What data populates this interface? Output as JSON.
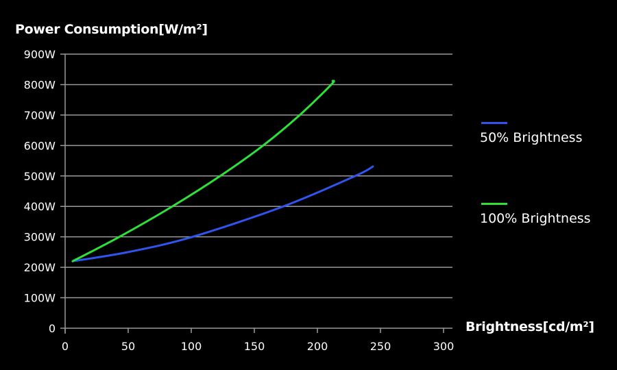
{
  "chart_data": {
    "type": "line",
    "ylabel": "Power Consumption[W/m²]",
    "xlabel": "Brightness[cd/m²]",
    "xlim": [
      0,
      300
    ],
    "ylim": [
      0,
      900
    ],
    "xticks": [
      "0",
      "50",
      "100",
      "150",
      "200",
      "250",
      "300"
    ],
    "yticks": [
      "0",
      "100W",
      "200W",
      "300W",
      "400W",
      "500W",
      "600W",
      "700W",
      "800W",
      "900W"
    ],
    "grid": "horizontal",
    "legend_position": "right",
    "series": [
      {
        "name": "50% Brightness",
        "color": "#2f55ee",
        "x": [
          6,
          50,
          101,
          173,
          230,
          244
        ],
        "y": [
          220,
          250,
          300,
          400,
          500,
          531
        ]
      },
      {
        "name": "100% Brightness",
        "color": "#2fe03a",
        "x": [
          6,
          43,
          85,
          123,
          157,
          186,
          211,
          212
        ],
        "y": [
          220,
          300,
          400,
          500,
          600,
          700,
          800,
          812
        ]
      }
    ]
  }
}
